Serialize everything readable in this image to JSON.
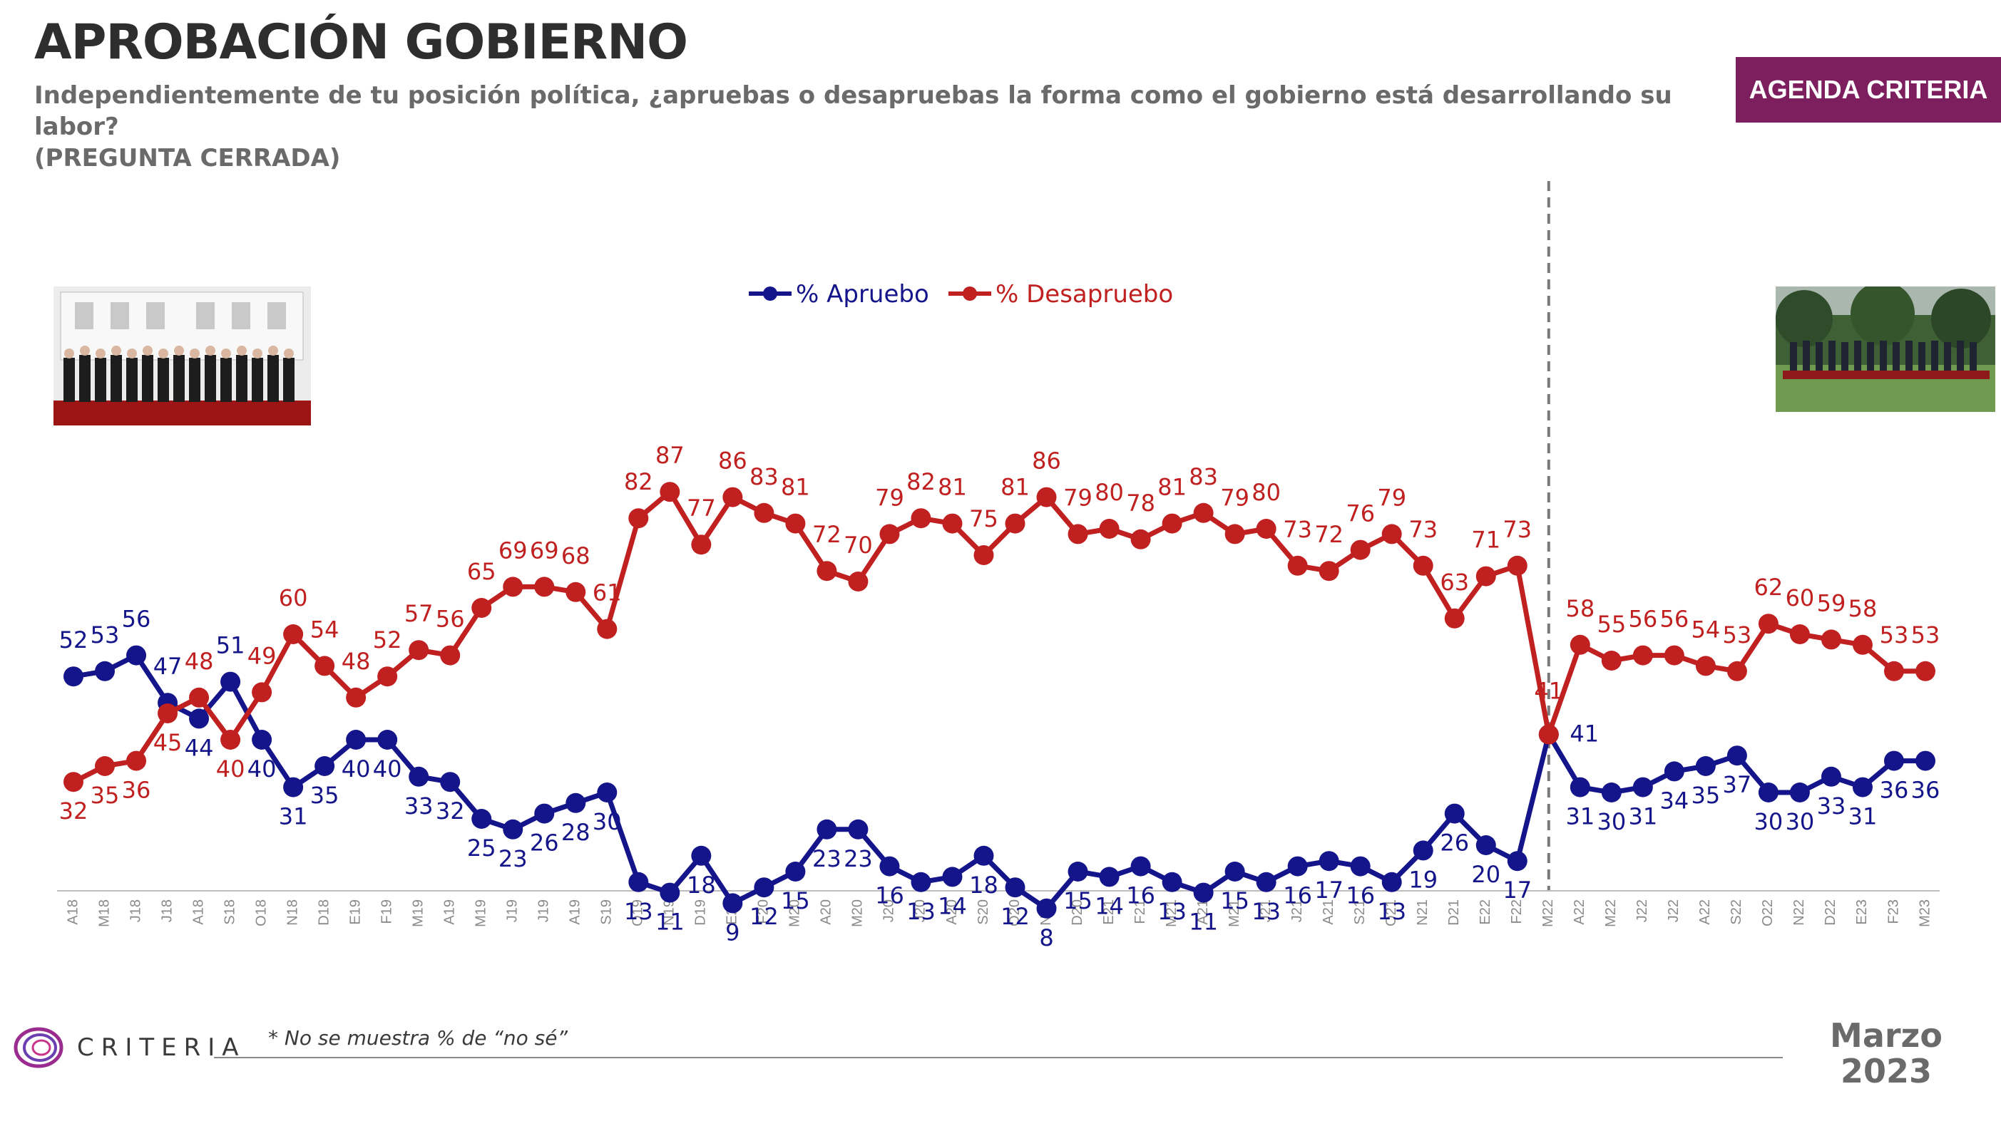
{
  "header": {
    "title": "APROBACIÓN GOBIERNO",
    "subtitle": "Independientemente de tu posición política, ¿apruebas o desapruebas la forma como el gobierno está desarrollando su labor?",
    "subtitle_note": "(PREGUNTA CERRADA)",
    "badge": "AGENDA CRITERIA"
  },
  "footer": {
    "logo_text": "CRITERIA",
    "footnote": "* No se muestra % de “no sé”",
    "date_month": "Marzo",
    "date_year": "2023"
  },
  "colors": {
    "approve": "#14158a",
    "disapprove": "#c0201f",
    "badge": "#7d1f5f"
  },
  "chart_data": {
    "type": "line",
    "categories": [
      "A18",
      "M18",
      "J18",
      "J18",
      "A18",
      "S18",
      "O18",
      "N18",
      "D18",
      "E19",
      "F19",
      "M19",
      "A19",
      "M19",
      "J19",
      "J19",
      "A19",
      "S19",
      "O19",
      "N19",
      "D19",
      "E20",
      "F20",
      "M20",
      "A20",
      "M20",
      "J20",
      "J20",
      "A20",
      "S20",
      "O20",
      "N20",
      "D20",
      "E21",
      "F21",
      "M21",
      "A21",
      "M21",
      "J21",
      "J21",
      "A21",
      "S21",
      "O21",
      "N21",
      "D21",
      "E22",
      "F22",
      "M22",
      "A22",
      "M22",
      "J22",
      "J22",
      "A22",
      "S22",
      "O22",
      "N22",
      "D22",
      "E23",
      "F23",
      "M23"
    ],
    "series": [
      {
        "name": "% Apruebo",
        "values": [
          52,
          53,
          56,
          47,
          44,
          51,
          40,
          31,
          35,
          40,
          40,
          33,
          32,
          25,
          23,
          26,
          28,
          30,
          13,
          11,
          18,
          9,
          12,
          15,
          23,
          23,
          16,
          13,
          14,
          18,
          12,
          8,
          15,
          14,
          16,
          13,
          11,
          15,
          13,
          16,
          17,
          16,
          13,
          19,
          26,
          20,
          17,
          41,
          31,
          30,
          31,
          34,
          35,
          37,
          30,
          30,
          33,
          31,
          36,
          36
        ]
      },
      {
        "name": "% Desapruebo",
        "values": [
          32,
          35,
          36,
          45,
          48,
          40,
          49,
          60,
          54,
          48,
          52,
          57,
          56,
          65,
          69,
          69,
          68,
          61,
          82,
          87,
          77,
          86,
          83,
          81,
          72,
          70,
          79,
          82,
          81,
          75,
          81,
          86,
          79,
          80,
          78,
          81,
          83,
          79,
          80,
          73,
          72,
          76,
          79,
          73,
          63,
          71,
          73,
          41,
          58,
          55,
          56,
          56,
          54,
          53,
          62,
          60,
          59,
          58,
          53,
          53
        ]
      }
    ],
    "divider_after_category_index": 47,
    "legend_position": "top-center",
    "grid": false
  }
}
